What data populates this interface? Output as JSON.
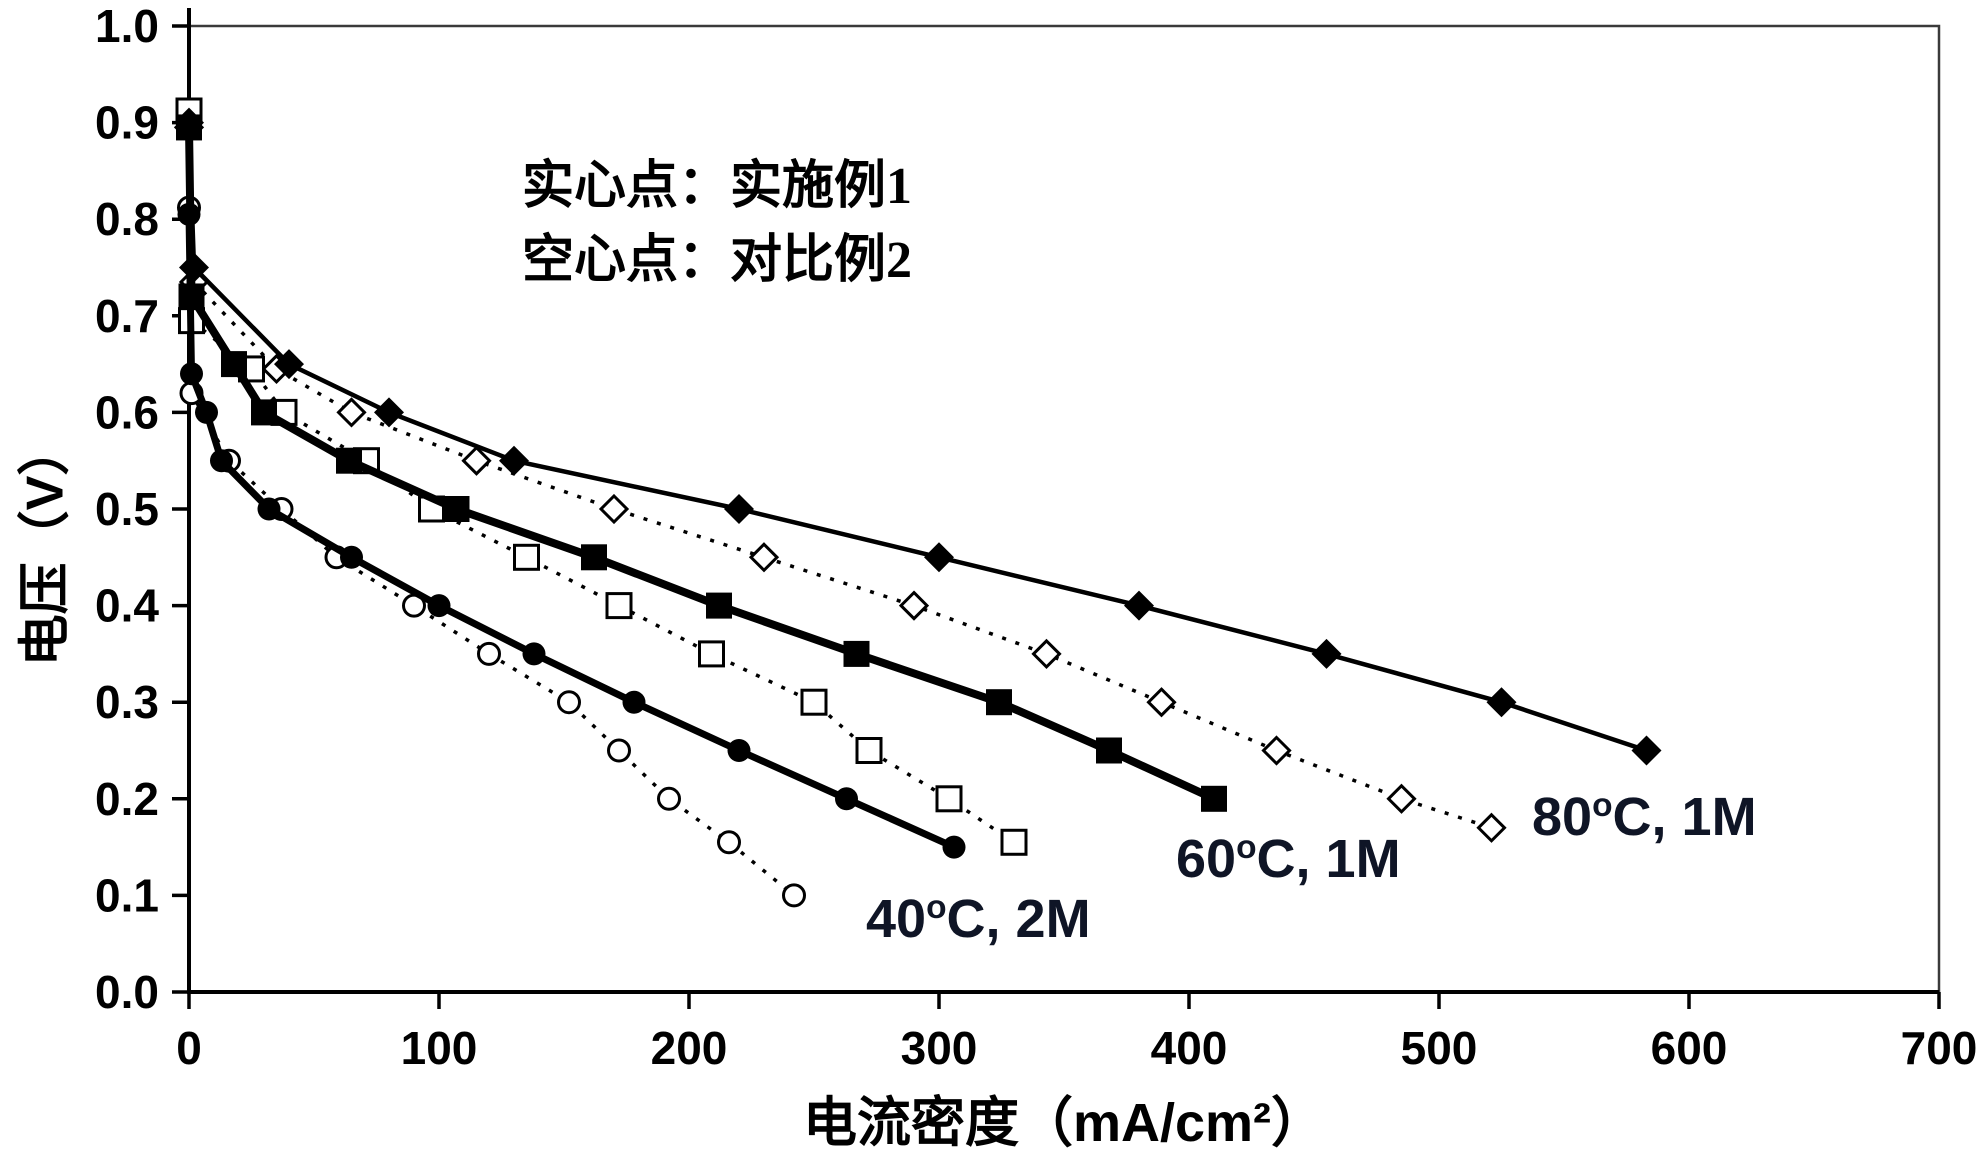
{
  "figure": {
    "background": "#ffffff",
    "ink": "#000000",
    "curve_label_color": "#0f1526"
  },
  "legend": {
    "line1": "实心点：实施例1",
    "line2": "空心点：对比例2"
  },
  "axes": {
    "x_title": "电流密度（mA/cm²）",
    "y_title": "电压（V）"
  },
  "curve_labels": [
    {
      "pre": "40",
      "deg": "o",
      "post": "C, 2M"
    },
    {
      "pre": "60",
      "deg": "o",
      "post": "C, 1M"
    },
    {
      "pre": "80",
      "deg": "o",
      "post": "C, 1M"
    }
  ],
  "chart_data": {
    "type": "line",
    "title": "",
    "xlabel": "电流密度（mA/cm²）",
    "ylabel": "电压（V）",
    "xlim": [
      0,
      700
    ],
    "ylim": [
      0.0,
      1.0
    ],
    "x_ticks": [
      "0",
      "100",
      "200",
      "300",
      "400",
      "500",
      "600",
      "700"
    ],
    "y_ticks": [
      "0.0",
      "0.1",
      "0.2",
      "0.3",
      "0.4",
      "0.5",
      "0.6",
      "0.7",
      "0.8",
      "0.9",
      "1.0"
    ],
    "grid": false,
    "legend_position": "inside-top-left",
    "series": [
      {
        "name": "对比例2 80°C, 1M（空心菱形）",
        "marker": "diamond",
        "marker_fill": "hollow",
        "line_style": "dotted",
        "line_width": 3.5,
        "marker_size": 13,
        "points": [
          [
            0,
            0.895
          ],
          [
            2,
            0.735
          ],
          [
            35,
            0.645
          ],
          [
            65,
            0.6
          ],
          [
            115,
            0.55
          ],
          [
            170,
            0.5
          ],
          [
            230,
            0.45
          ],
          [
            290,
            0.4
          ],
          [
            343,
            0.35
          ],
          [
            389,
            0.3
          ],
          [
            435,
            0.25
          ],
          [
            485,
            0.2
          ],
          [
            521,
            0.17
          ]
        ]
      },
      {
        "name": "对比例2 60°C, 1M（空心方形）",
        "marker": "square",
        "marker_fill": "hollow",
        "line_style": "dotted",
        "line_width": 3.5,
        "marker_size": 12,
        "points": [
          [
            0,
            0.912
          ],
          [
            1,
            0.695
          ],
          [
            25,
            0.645
          ],
          [
            38,
            0.6
          ],
          [
            71,
            0.55
          ],
          [
            97,
            0.5
          ],
          [
            135,
            0.45
          ],
          [
            172,
            0.4
          ],
          [
            209,
            0.35
          ],
          [
            250,
            0.3
          ],
          [
            272,
            0.25
          ],
          [
            304,
            0.2
          ],
          [
            330,
            0.155
          ]
        ]
      },
      {
        "name": "对比例2 40°C, 2M（空心圆形）",
        "marker": "circle",
        "marker_fill": "hollow",
        "line_style": "dotted",
        "line_width": 3.5,
        "marker_size": 10.5,
        "points": [
          [
            0,
            0.812
          ],
          [
            1,
            0.62
          ],
          [
            16,
            0.55
          ],
          [
            37,
            0.5
          ],
          [
            59,
            0.45
          ],
          [
            90,
            0.4
          ],
          [
            120,
            0.35
          ],
          [
            152,
            0.3
          ],
          [
            172,
            0.25
          ],
          [
            192,
            0.2
          ],
          [
            216,
            0.155
          ],
          [
            242,
            0.1
          ]
        ]
      },
      {
        "name": "实施例1 80°C, 1M（实心菱形）",
        "marker": "diamond",
        "marker_fill": "solid",
        "line_style": "solid",
        "line_width": 4.5,
        "marker_size": 15,
        "points": [
          [
            0,
            0.9
          ],
          [
            2,
            0.75
          ],
          [
            40,
            0.65
          ],
          [
            80,
            0.6
          ],
          [
            130,
            0.55
          ],
          [
            220,
            0.5
          ],
          [
            300,
            0.45
          ],
          [
            380,
            0.4
          ],
          [
            455,
            0.35
          ],
          [
            525,
            0.3
          ],
          [
            583,
            0.25
          ]
        ]
      },
      {
        "name": "实施例1 60°C, 1M（实心方形）",
        "marker": "square",
        "marker_fill": "solid",
        "line_style": "solid",
        "line_width": 8,
        "marker_size": 13,
        "points": [
          [
            0,
            0.895
          ],
          [
            1,
            0.72
          ],
          [
            18,
            0.65
          ],
          [
            30,
            0.6
          ],
          [
            64,
            0.55
          ],
          [
            107,
            0.5
          ],
          [
            162,
            0.45
          ],
          [
            212,
            0.4
          ],
          [
            267,
            0.35
          ],
          [
            324,
            0.3
          ],
          [
            368,
            0.25
          ],
          [
            410,
            0.2
          ]
        ]
      },
      {
        "name": "实施例1 40°C, 2M（实心圆形）",
        "marker": "circle",
        "marker_fill": "solid",
        "line_style": "solid",
        "line_width": 7,
        "marker_size": 11.5,
        "points": [
          [
            0,
            0.805
          ],
          [
            1,
            0.64
          ],
          [
            7,
            0.6
          ],
          [
            13,
            0.55
          ],
          [
            32,
            0.5
          ],
          [
            65,
            0.45
          ],
          [
            100,
            0.4
          ],
          [
            138,
            0.35
          ],
          [
            178,
            0.3
          ],
          [
            220,
            0.25
          ],
          [
            263,
            0.2
          ],
          [
            306,
            0.15
          ]
        ]
      }
    ]
  }
}
